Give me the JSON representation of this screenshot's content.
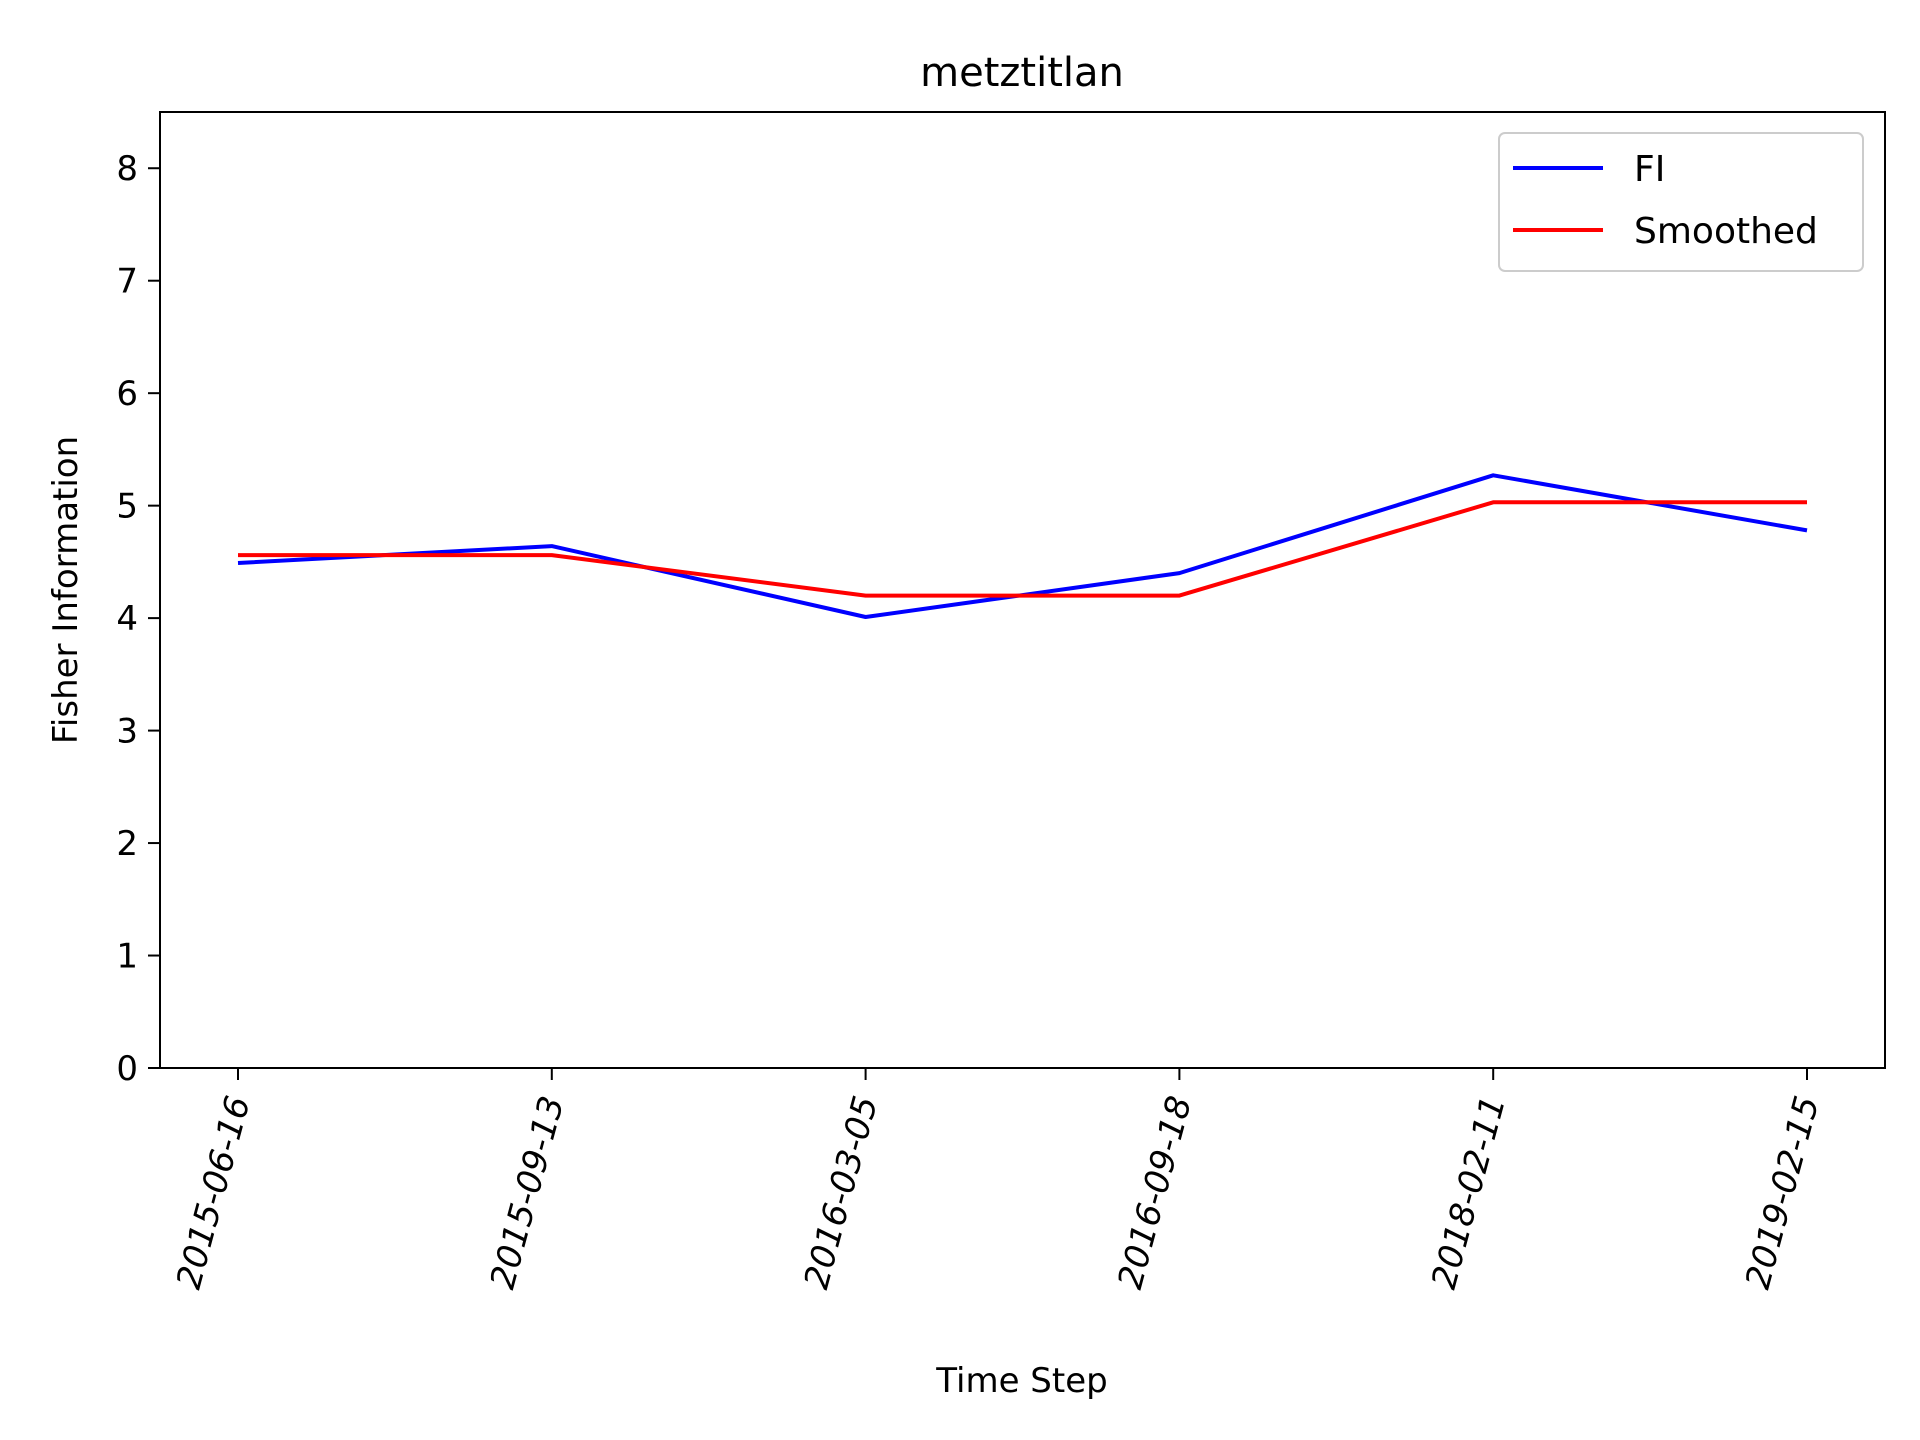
{
  "chart_data": {
    "type": "line",
    "title": "metztitlan",
    "xlabel": "Time Step",
    "ylabel": "Fisher Information",
    "categories": [
      "2015-06-16",
      "2015-09-13",
      "2016-03-05",
      "2016-09-18",
      "2018-02-11",
      "2019-02-15"
    ],
    "ylim": [
      0,
      8.5
    ],
    "yticks": [
      0,
      1,
      2,
      3,
      4,
      5,
      6,
      7,
      8
    ],
    "series": [
      {
        "name": "FI",
        "color": "#0000ff",
        "values": [
          4.49,
          4.64,
          4.01,
          4.4,
          5.27,
          4.78
        ]
      },
      {
        "name": "Smoothed",
        "color": "#ff0000",
        "values": [
          4.56,
          4.56,
          4.2,
          4.2,
          5.03,
          5.03
        ]
      }
    ],
    "legend": {
      "position": "top-right"
    },
    "grid": false
  }
}
